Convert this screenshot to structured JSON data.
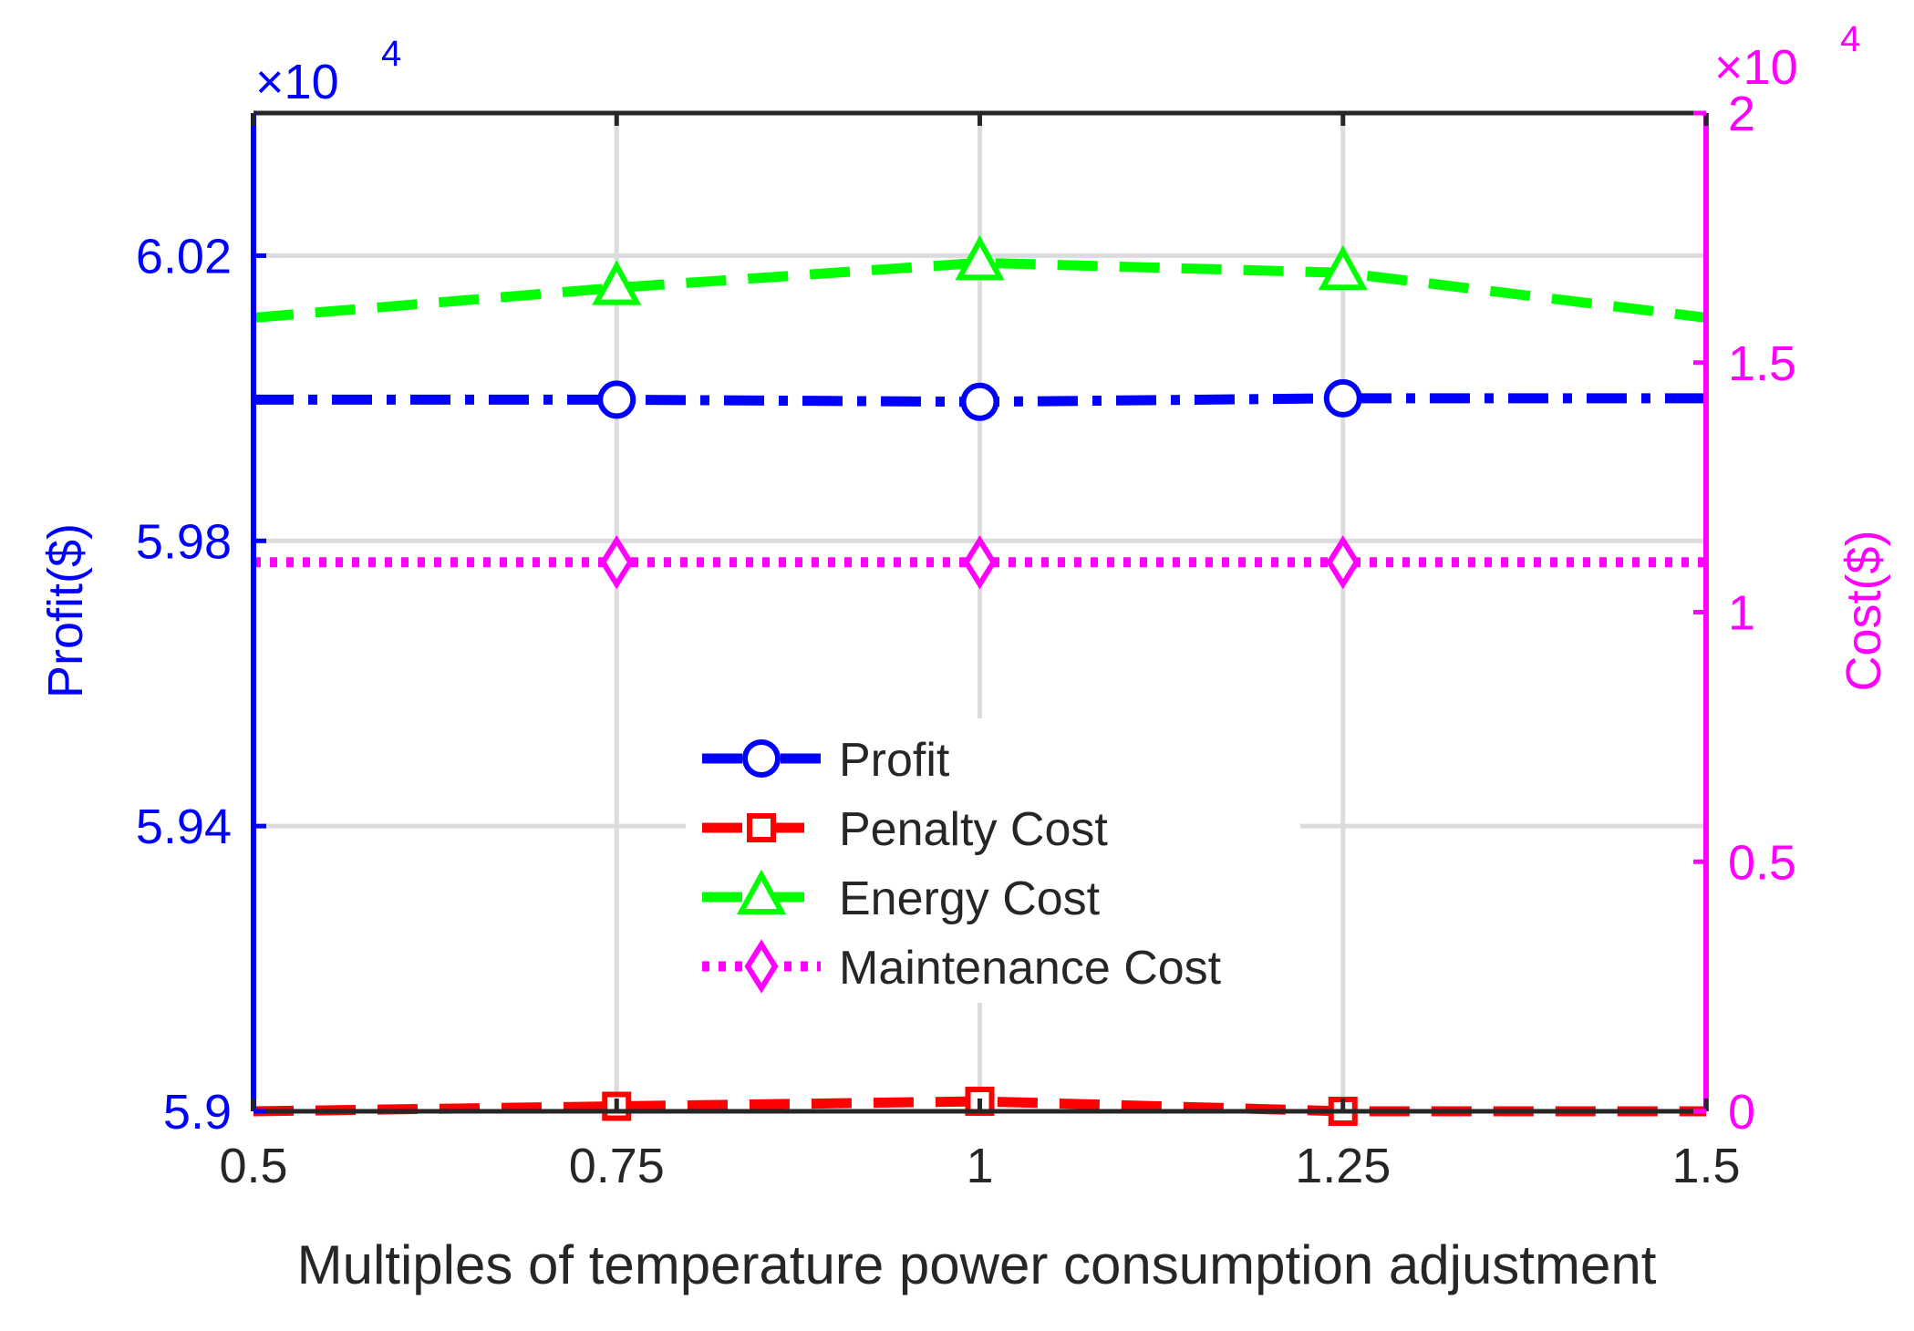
{
  "chart_data": {
    "type": "line",
    "xlabel": "Multiples of temperature power consumption  adjustment",
    "x": [
      0.5,
      0.75,
      1,
      1.25,
      1.5
    ],
    "x_ticks": [
      0.5,
      0.75,
      1,
      1.25,
      1.5
    ],
    "x_tick_labels": [
      "0.5",
      "0.75",
      "1",
      "1.25",
      "1.5"
    ],
    "xlim": [
      0.5,
      1.5
    ],
    "left_axis": {
      "label": "Profit($)",
      "exponent_label": "×10",
      "exponent_power": "4",
      "color": "#0000ff",
      "ylim": [
        5.9,
        6.04
      ],
      "ticks": [
        5.9,
        5.94,
        5.98,
        6.02
      ],
      "tick_labels": [
        "5.9",
        "5.94",
        "5.98",
        "6.02"
      ]
    },
    "right_axis": {
      "label": "Cost($)",
      "exponent_label": "×10",
      "exponent_power": "4",
      "color": "#ff00ff",
      "ylim": [
        0,
        2
      ],
      "ticks": [
        0,
        0.5,
        1,
        1.5,
        2
      ],
      "tick_labels": [
        "0",
        "0.5",
        "1",
        "1.5",
        "2"
      ]
    },
    "series": [
      {
        "name": "Profit",
        "axis": "left",
        "color": "#0000ff",
        "dash": "dashdot",
        "marker": "circle",
        "values": [
          5.9998,
          5.9998,
          5.9995,
          6.0,
          6.0
        ]
      },
      {
        "name": "Penalty Cost",
        "axis": "right",
        "color": "#ff0000",
        "dash": "dashed",
        "marker": "square",
        "values": [
          0.0,
          0.01,
          0.02,
          0.0,
          0.0
        ]
      },
      {
        "name": "Energy Cost",
        "axis": "right",
        "color": "#00ff00",
        "dash": "dashed",
        "marker": "triangle",
        "values": [
          1.59,
          1.65,
          1.7,
          1.68,
          1.59
        ]
      },
      {
        "name": "Maintenance Cost",
        "axis": "right",
        "color": "#ff00ff",
        "dash": "dotted",
        "marker": "diamond",
        "values": [
          1.1,
          1.1,
          1.1,
          1.1,
          1.1
        ]
      }
    ],
    "legend_position": "center"
  }
}
